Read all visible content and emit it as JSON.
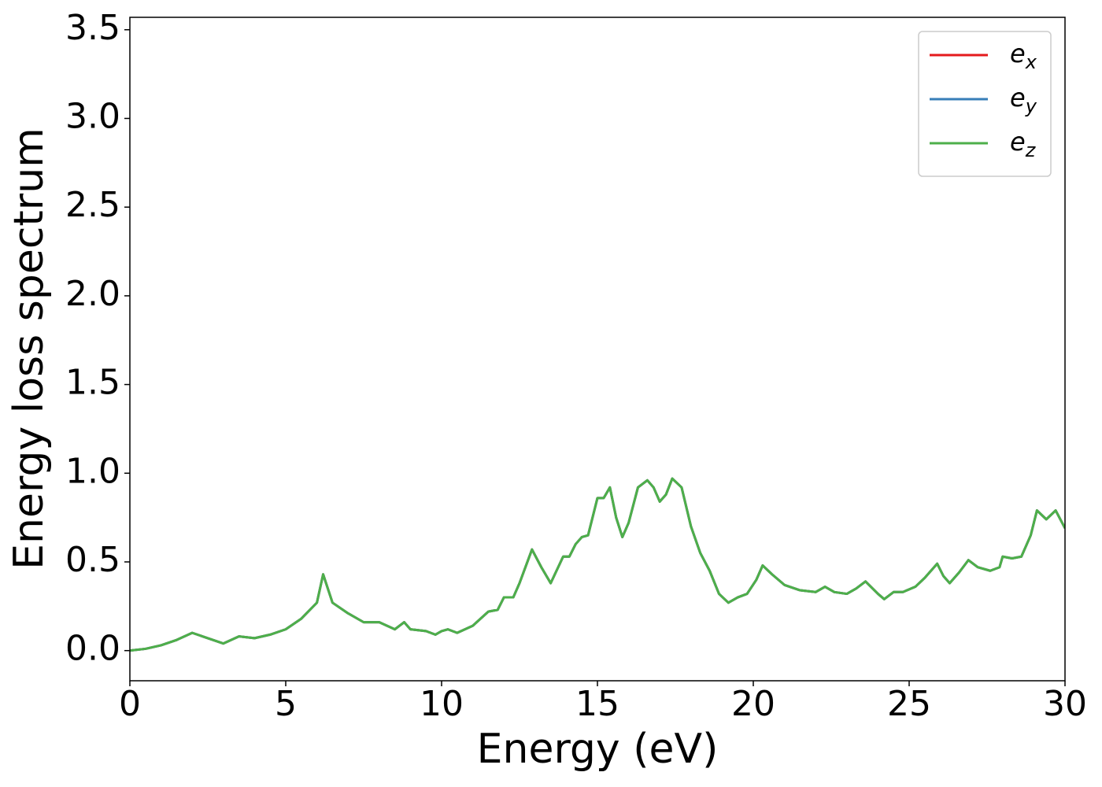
{
  "chart_data": {
    "type": "line",
    "xlabel": "Energy (eV)",
    "ylabel": "Energy loss spectrum",
    "x": [
      0,
      0.5,
      1,
      1.5,
      2,
      2.5,
      3,
      3.5,
      4,
      4.5,
      5,
      5.5,
      6,
      6.2,
      6.5,
      7,
      7.5,
      8,
      8.5,
      8.8,
      9,
      9.5,
      9.8,
      10,
      10.2,
      10.5,
      11,
      11.5,
      11.8,
      12,
      12.3,
      12.5,
      12.9,
      13.2,
      13.5,
      13.9,
      14.1,
      14.3,
      14.5,
      14.7,
      15,
      15.2,
      15.4,
      15.6,
      15.8,
      16,
      16.3,
      16.6,
      16.8,
      17,
      17.2,
      17.4,
      17.7,
      18,
      18.3,
      18.6,
      18.9,
      19.2,
      19.5,
      19.8,
      20.1,
      20.3,
      20.6,
      21,
      21.5,
      22,
      22.3,
      22.6,
      23,
      23.3,
      23.6,
      24,
      24.2,
      24.5,
      24.8,
      25.2,
      25.5,
      25.9,
      26.1,
      26.3,
      26.6,
      26.9,
      27.2,
      27.6,
      27.9,
      28,
      28.3,
      28.6,
      28.9,
      29.1,
      29.4,
      29.7,
      30
    ],
    "series": [
      {
        "name": "ex",
        "color": "#e41a1c",
        "values": [
          0,
          0.01,
          0.03,
          0.06,
          0.1,
          0.07,
          0.04,
          0.08,
          0.07,
          0.09,
          0.12,
          0.18,
          0.27,
          0.43,
          0.27,
          0.21,
          0.16,
          0.16,
          0.12,
          0.16,
          0.12,
          0.11,
          0.09,
          0.11,
          0.12,
          0.1,
          0.14,
          0.22,
          0.23,
          0.3,
          0.3,
          0.38,
          0.57,
          0.47,
          0.38,
          0.53,
          0.53,
          0.6,
          0.64,
          0.65,
          0.86,
          0.86,
          0.92,
          0.75,
          0.64,
          0.72,
          0.92,
          0.96,
          0.92,
          0.84,
          0.88,
          0.97,
          0.92,
          0.7,
          0.55,
          0.45,
          0.32,
          0.27,
          0.3,
          0.32,
          0.4,
          0.48,
          0.43,
          0.37,
          0.34,
          0.33,
          0.36,
          0.33,
          0.32,
          0.35,
          0.39,
          0.32,
          0.29,
          0.33,
          0.33,
          0.36,
          0.41,
          0.49,
          0.42,
          0.38,
          0.44,
          0.51,
          0.47,
          0.45,
          0.47,
          0.53,
          0.52,
          0.53,
          0.65,
          0.79,
          0.74,
          0.79,
          0.69
        ]
      },
      {
        "name": "ey",
        "color": "#377eb8",
        "values": [
          0,
          0.01,
          0.03,
          0.06,
          0.1,
          0.07,
          0.04,
          0.08,
          0.07,
          0.09,
          0.12,
          0.18,
          0.27,
          0.43,
          0.27,
          0.21,
          0.16,
          0.16,
          0.12,
          0.16,
          0.12,
          0.11,
          0.09,
          0.11,
          0.12,
          0.1,
          0.14,
          0.22,
          0.23,
          0.3,
          0.3,
          0.38,
          0.57,
          0.47,
          0.38,
          0.53,
          0.53,
          0.6,
          0.64,
          0.65,
          0.86,
          0.86,
          0.92,
          0.75,
          0.64,
          0.72,
          0.92,
          0.96,
          0.92,
          0.84,
          0.88,
          0.97,
          0.92,
          0.7,
          0.55,
          0.45,
          0.32,
          0.27,
          0.3,
          0.32,
          0.4,
          0.48,
          0.43,
          0.37,
          0.34,
          0.33,
          0.36,
          0.33,
          0.32,
          0.35,
          0.39,
          0.32,
          0.29,
          0.33,
          0.33,
          0.36,
          0.41,
          0.49,
          0.42,
          0.38,
          0.44,
          0.51,
          0.47,
          0.45,
          0.47,
          0.53,
          0.52,
          0.53,
          0.65,
          0.79,
          0.74,
          0.79,
          0.69
        ]
      },
      {
        "name": "ez",
        "color": "#4daf4a",
        "values": [
          0,
          0.01,
          0.03,
          0.06,
          0.1,
          0.07,
          0.04,
          0.08,
          0.07,
          0.09,
          0.12,
          0.18,
          0.27,
          0.43,
          0.27,
          0.21,
          0.16,
          0.16,
          0.12,
          0.16,
          0.12,
          0.11,
          0.09,
          0.11,
          0.12,
          0.1,
          0.14,
          0.22,
          0.23,
          0.3,
          0.3,
          0.38,
          0.57,
          0.47,
          0.38,
          0.53,
          0.53,
          0.6,
          0.64,
          0.65,
          0.86,
          0.86,
          0.92,
          0.75,
          0.64,
          0.72,
          0.92,
          0.96,
          0.92,
          0.84,
          0.88,
          0.97,
          0.92,
          0.7,
          0.55,
          0.45,
          0.32,
          0.27,
          0.3,
          0.32,
          0.4,
          0.48,
          0.43,
          0.37,
          0.34,
          0.33,
          0.36,
          0.33,
          0.32,
          0.35,
          0.39,
          0.32,
          0.29,
          0.33,
          0.33,
          0.36,
          0.41,
          0.49,
          0.42,
          0.38,
          0.44,
          0.51,
          0.47,
          0.45,
          0.47,
          0.53,
          0.52,
          0.53,
          0.65,
          0.79,
          0.74,
          0.79,
          0.69
        ]
      }
    ],
    "xlim": [
      0,
      30
    ],
    "xticks": [
      0,
      5,
      10,
      15,
      20,
      25,
      30
    ],
    "ylim": [
      -0.17,
      3.57
    ],
    "yticks": [
      {
        "value": 0,
        "label": "0.0"
      },
      0.5,
      {
        "value": 1,
        "label": "1.0"
      },
      1.5,
      {
        "value": 2,
        "label": "2.0"
      },
      2.5,
      {
        "value": 3,
        "label": "3.0"
      },
      3.5
    ],
    "legend": "upper right",
    "grid": false
  }
}
